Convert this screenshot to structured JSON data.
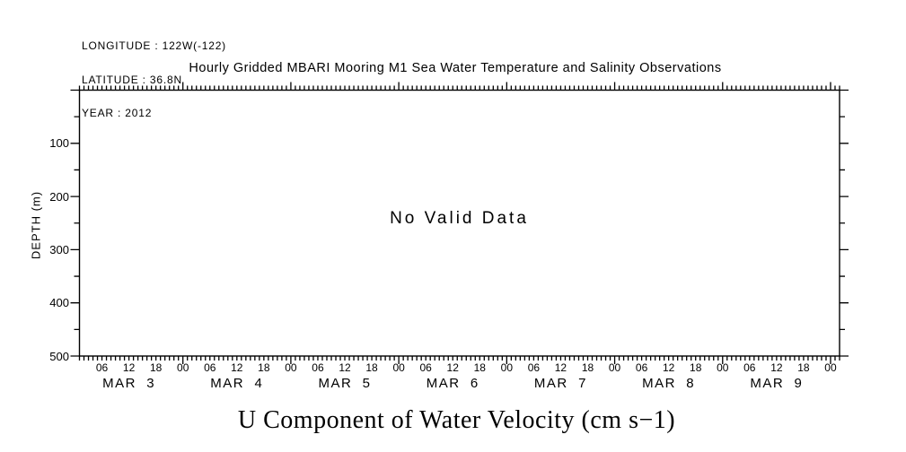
{
  "header": {
    "longitude": "LONGITUDE : 122W(-122)",
    "latitude": "LATITUDE : 36.8N",
    "year": "YEAR : 2012"
  },
  "chart_data": {
    "type": "heatmap",
    "title": "Hourly Gridded MBARI Mooring M1 Sea Water Temperature and Salinity Observations",
    "xlabel": "U Component of Water Velocity (cm s−1)",
    "ylabel": "DEPTH (m)",
    "status_message": "No Valid Data",
    "series": [],
    "grid": false,
    "legend": "none",
    "x_axis": {
      "day_labels": [
        "MAR  3",
        "MAR  4",
        "MAR  5",
        "MAR  6",
        "MAR  7",
        "MAR  8",
        "MAR  9"
      ],
      "hour_label_cycle": [
        "06",
        "12",
        "18",
        "00"
      ],
      "hour_label_step": 6,
      "minor_tick_hours": 1,
      "total_hours": 169,
      "labeled_span_hours": 168,
      "hours_before_first_midnight": 23
    },
    "y_axis": {
      "min": 0,
      "max": 500,
      "major_step": 100,
      "minor_step": 50,
      "tick_labels": [
        "100",
        "200",
        "300",
        "400",
        "500"
      ]
    },
    "colors": {
      "axis": "#000000",
      "text": "#000000",
      "background": "#ffffff"
    }
  }
}
